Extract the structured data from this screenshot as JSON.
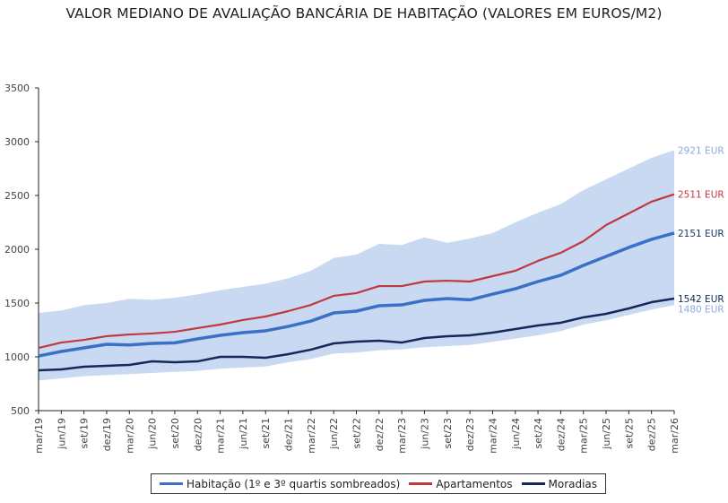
{
  "chart_data": {
    "type": "line",
    "title": "VALOR MEDIANO DE AVALIAÇÃO BANCÁRIA DE HABITAÇÃO (VALORES EM EUROS/M2)",
    "xlabel": "",
    "ylabel": "",
    "ylim": [
      500,
      3500
    ],
    "yticks": [
      500,
      1000,
      1500,
      2000,
      2500,
      3000,
      3500
    ],
    "grid": false,
    "legend_position": "bottom",
    "categories": [
      "mar/19",
      "jun/19",
      "set/19",
      "dez/19",
      "mar/20",
      "jun/20",
      "set/20",
      "dez/20",
      "mar/21",
      "jun/21",
      "set/21",
      "dez/21",
      "mar/22",
      "jun/22",
      "set/22",
      "dez/22",
      "mar/23",
      "jun/23",
      "set/23",
      "dez/23",
      "mar/24",
      "jun/24",
      "set/24",
      "dez/24",
      "mar/25",
      "jun/25",
      "set/25",
      "dez/25",
      "mar/26"
    ],
    "band": {
      "name": "1º e 3º quartis",
      "color": "#c9d9f2",
      "upper": [
        1408,
        1430,
        1480,
        1500,
        1540,
        1530,
        1550,
        1580,
        1620,
        1650,
        1680,
        1730,
        1800,
        1920,
        1950,
        2050,
        2040,
        2110,
        2060,
        2100,
        2150,
        2250,
        2340,
        2420,
        2550,
        2650,
        2750,
        2850,
        2921
      ],
      "lower": [
        780,
        800,
        820,
        830,
        840,
        850,
        860,
        870,
        890,
        900,
        910,
        950,
        980,
        1030,
        1040,
        1060,
        1070,
        1090,
        1100,
        1110,
        1140,
        1170,
        1200,
        1240,
        1300,
        1340,
        1390,
        1440,
        1480
      ],
      "upper_end_label": "2921 EUR",
      "lower_end_label": "1480 EUR"
    },
    "series": [
      {
        "name": "Habitação (1º e 3º quartis sombreados)",
        "color": "#3a70c6",
        "width": 3.5,
        "end_label": "2151 EUR",
        "label_color": "#1f3864",
        "values": [
          1008,
          1050,
          1083,
          1117,
          1110,
          1125,
          1130,
          1167,
          1200,
          1225,
          1242,
          1283,
          1333,
          1408,
          1425,
          1475,
          1483,
          1525,
          1542,
          1530,
          1583,
          1633,
          1700,
          1758,
          1850,
          1933,
          2017,
          2092,
          2151
        ]
      },
      {
        "name": "Apartamentos",
        "color": "#c0393f",
        "width": 2.2,
        "end_label": "2511 EUR",
        "label_color": "#c0393f",
        "values": [
          1083,
          1133,
          1158,
          1192,
          1208,
          1217,
          1233,
          1267,
          1300,
          1342,
          1375,
          1425,
          1483,
          1567,
          1592,
          1658,
          1658,
          1700,
          1708,
          1700,
          1750,
          1800,
          1892,
          1967,
          2075,
          2225,
          2333,
          2442,
          2511
        ]
      },
      {
        "name": "Moradias",
        "color": "#14295a",
        "width": 2.5,
        "end_label": "1542 EUR",
        "label_color": "#14295a",
        "values": [
          875,
          883,
          908,
          917,
          925,
          958,
          950,
          958,
          1000,
          1000,
          992,
          1025,
          1067,
          1125,
          1142,
          1150,
          1133,
          1175,
          1192,
          1200,
          1225,
          1258,
          1292,
          1317,
          1367,
          1400,
          1450,
          1508,
          1542
        ]
      }
    ]
  }
}
